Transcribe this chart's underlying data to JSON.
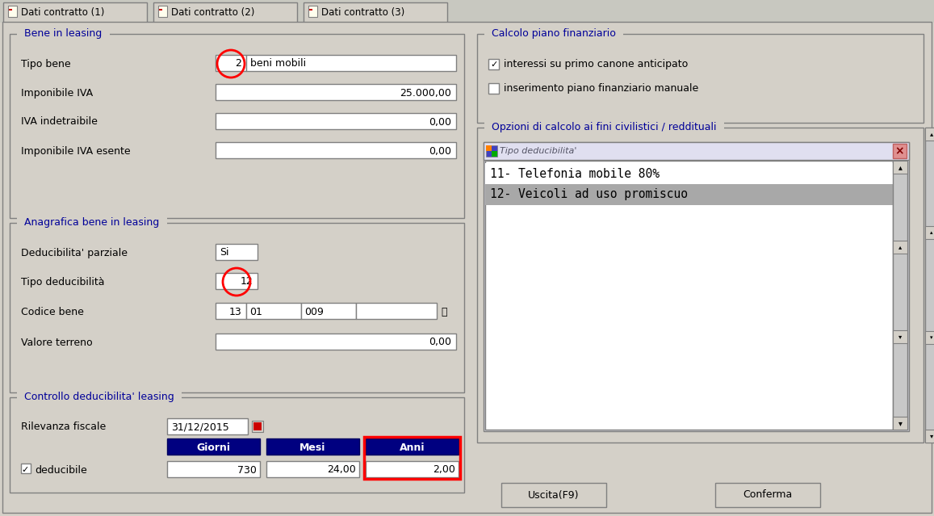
{
  "bg_color": "#d4d0c8",
  "white": "#ffffff",
  "fig_width": 11.57,
  "fig_height": 6.39,
  "tab_labels": [
    "Dati contratto (1)",
    "Dati contratto (2)",
    "Dati contratto (3)"
  ],
  "section1_title": "Bene in leasing",
  "section2_title": "Anagrafica bene in leasing",
  "section3_title": "Controllo deducibilita' leasing",
  "right_section1_title": "Calcolo piano finanziario",
  "right_check1": "interessi su primo canone anticipato",
  "right_check2": "inserimento piano finanziario manuale",
  "right_section2_title": "Opzioni di calcolo ai fini civilistici / reddituali",
  "popup_title": "Tipo deducibilita'",
  "popup_item1": "11- Telefonia mobile 80%",
  "popup_item2": "12- Veicoli ad uso promiscuo",
  "btn1": "Uscita(F9)",
  "btn2": "Conferma",
  "title_color": "#000099",
  "dark_blue": "#000080",
  "selected_row_bg": "#a8a8a8",
  "border_color": "#808080",
  "red": "#ff0000",
  "popup_titlebar_bg": "#e0e0e8",
  "popup_close_bg": "#cc3333",
  "tab_bg_active": "#d4d0c8",
  "outer_border": "#808080"
}
